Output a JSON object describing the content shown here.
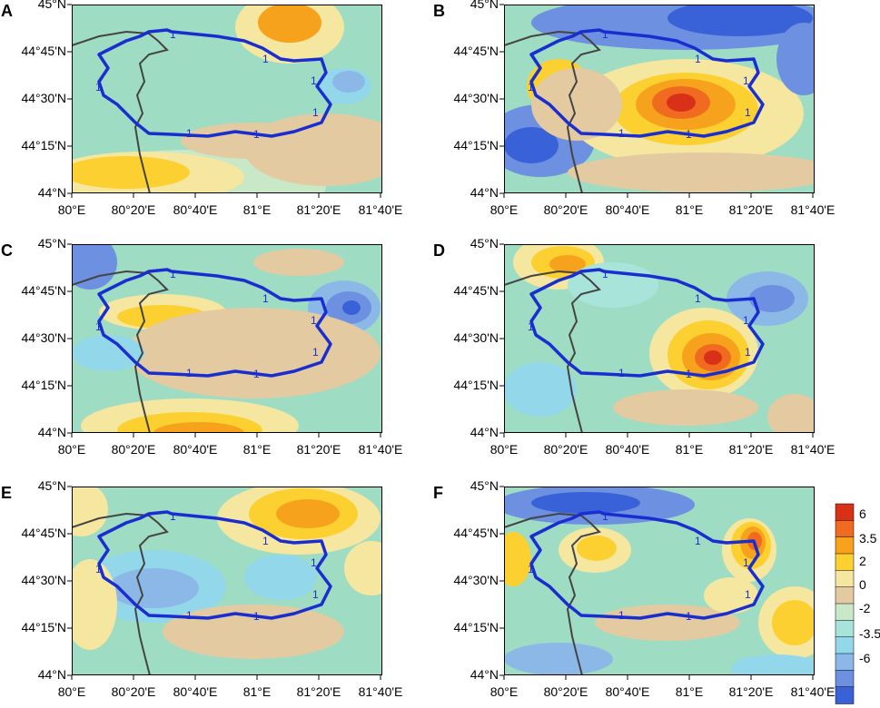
{
  "figure": {
    "panels": [
      {
        "letter": "A",
        "id": "a"
      },
      {
        "letter": "B",
        "id": "b"
      },
      {
        "letter": "C",
        "id": "c"
      },
      {
        "letter": "D",
        "id": "d"
      },
      {
        "letter": "E",
        "id": "e"
      },
      {
        "letter": "F",
        "id": "f"
      }
    ],
    "lat_ticks": [
      "45°N",
      "44°45'N",
      "44°30'N",
      "44°15'N",
      "44°N"
    ],
    "lon_ticks": [
      "80°E",
      "80°20'E",
      "80°40'E",
      "81°E",
      "81°20'E",
      "81°40'E"
    ],
    "contour_label": "1",
    "colorbar": {
      "labels": [
        "6",
        "3.5",
        "2",
        "0",
        "-2",
        "-3.5",
        "-6"
      ],
      "colors": [
        "#d93018",
        "#f06a20",
        "#f7a21c",
        "#fbd030",
        "#f5e6a0",
        "#e3caa0",
        "#c8e8c8",
        "#a8e4da",
        "#92d8ea",
        "#8cb8e8",
        "#6e90e0",
        "#3a62d8"
      ]
    },
    "colors": {
      "outline": "#1a2ed0",
      "border": "#444444",
      "background_field": "#9fdcc4"
    }
  },
  "chart_data": {
    "type": "heatmap",
    "lon_range": [
      "80°E",
      "81°40'E"
    ],
    "lat_range": [
      "44°N",
      "45°N"
    ],
    "panels": [
      "A",
      "B",
      "C",
      "D",
      "E",
      "F"
    ],
    "colorbar_ticks": [
      6,
      3.5,
      2,
      0,
      -2,
      -3.5,
      -6
    ]
  }
}
